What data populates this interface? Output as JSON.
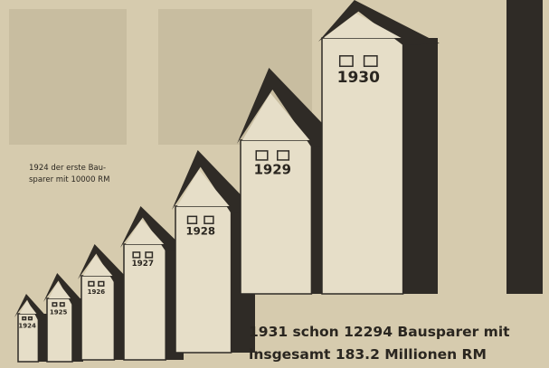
{
  "note": {
    "lines": [
      "1924 der erste Bau-",
      "sparer mit 10000 RM"
    ]
  },
  "houses": [
    {
      "label": "1924"
    },
    {
      "label": "1925"
    },
    {
      "label": "1926"
    },
    {
      "label": "1927"
    },
    {
      "label": "1928"
    },
    {
      "label": "1929"
    },
    {
      "label": "1930"
    }
  ],
  "caption": {
    "lines": [
      "1931 schon 12294 Bausparer mit",
      "insgesamt 183.2 Millionen RM"
    ]
  }
}
